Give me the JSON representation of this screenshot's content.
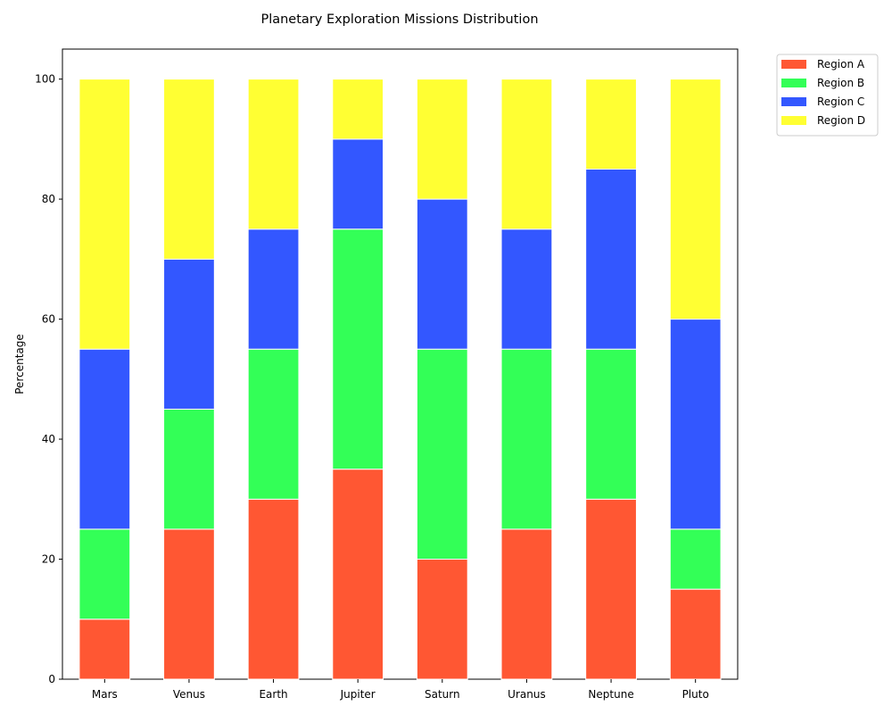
{
  "chart_data": {
    "type": "bar",
    "stacked": true,
    "title": "Planetary Exploration Missions Distribution",
    "xlabel": "",
    "ylabel": "Percentage",
    "ylim": [
      0,
      105
    ],
    "yticks": [
      "0",
      "20",
      "40",
      "60",
      "80",
      "100"
    ],
    "grid": false,
    "legend_position": "outside-top-right",
    "categories": [
      "Mars",
      "Venus",
      "Earth",
      "Jupiter",
      "Saturn",
      "Uranus",
      "Neptune",
      "Pluto"
    ],
    "series": [
      {
        "name": "Region A",
        "color": "#ff5733",
        "values": [
          10,
          25,
          30,
          35,
          20,
          25,
          30,
          15
        ]
      },
      {
        "name": "Region B",
        "color": "#33ff57",
        "values": [
          15,
          20,
          25,
          40,
          35,
          30,
          25,
          10
        ]
      },
      {
        "name": "Region C",
        "color": "#3357ff",
        "values": [
          30,
          25,
          20,
          15,
          25,
          20,
          30,
          35
        ]
      },
      {
        "name": "Region D",
        "color": "#ffff33",
        "values": [
          45,
          30,
          25,
          10,
          20,
          25,
          15,
          40
        ]
      }
    ]
  }
}
